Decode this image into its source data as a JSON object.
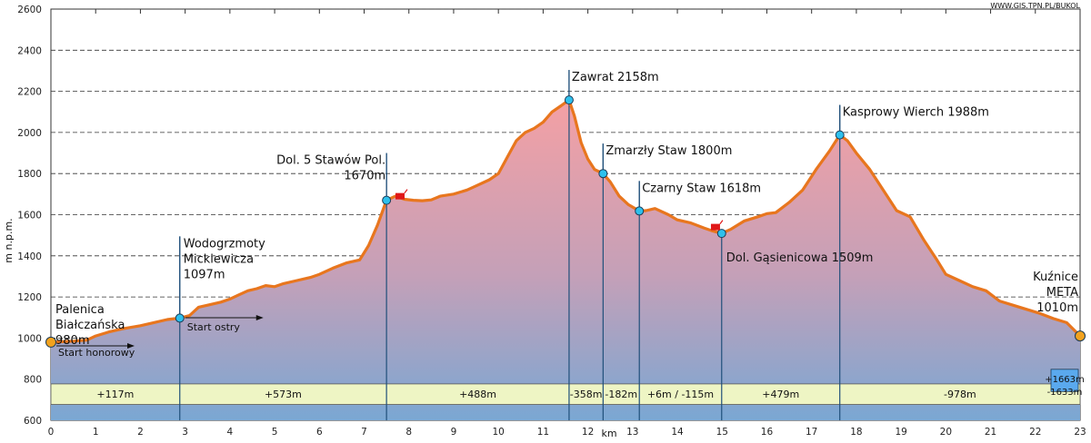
{
  "source_link": "WWW.GIS.TPN.PL/BUKOL",
  "chart_data": {
    "type": "area",
    "ylabel": "m n.p.m.",
    "xlabel": "km",
    "xlim": [
      0,
      23
    ],
    "ylim": [
      600,
      2600
    ],
    "x_ticks": [
      0,
      1,
      2,
      3,
      4,
      5,
      6,
      7,
      8,
      9,
      10,
      11,
      12,
      13,
      14,
      15,
      16,
      17,
      18,
      19,
      20,
      21,
      22,
      23
    ],
    "y_ticks": [
      600,
      800,
      1000,
      1200,
      1400,
      1600,
      1800,
      2000,
      2200,
      2400,
      2600
    ],
    "series": [
      {
        "x": [
          0,
          0.2,
          0.5,
          0.8,
          1.0,
          1.3,
          1.6,
          2.0,
          2.3,
          2.6,
          2.88,
          3.1,
          3.3,
          3.5,
          3.8,
          4.0,
          4.2,
          4.4,
          4.6,
          4.8,
          5.0,
          5.2,
          5.5,
          5.8,
          6.0,
          6.3,
          6.6,
          6.9,
          7.1,
          7.3,
          7.5,
          7.7,
          7.9,
          8.1,
          8.3,
          8.5,
          8.7,
          9.0,
          9.3,
          9.5,
          9.8,
          10.0,
          10.2,
          10.4,
          10.6,
          10.8,
          11.0,
          11.2,
          11.4,
          11.58,
          11.7,
          11.85,
          12.0,
          12.15,
          12.34,
          12.5,
          12.7,
          12.9,
          13.15,
          13.3,
          13.5,
          13.8,
          14.0,
          14.3,
          14.6,
          14.8,
          14.99,
          15.2,
          15.5,
          15.8,
          16.0,
          16.2,
          16.5,
          16.8,
          17.1,
          17.4,
          17.63,
          17.8,
          18.0,
          18.3,
          18.6,
          18.9,
          19.2,
          19.5,
          19.8,
          20.0,
          20.3,
          20.6,
          20.9,
          21.2,
          21.5,
          21.8,
          22.1,
          22.4,
          22.7,
          23.0
        ],
        "y": [
          980,
          982,
          985,
          990,
          1010,
          1030,
          1045,
          1060,
          1075,
          1090,
          1097,
          1110,
          1150,
          1160,
          1175,
          1190,
          1210,
          1230,
          1240,
          1255,
          1250,
          1265,
          1280,
          1295,
          1310,
          1340,
          1365,
          1380,
          1450,
          1550,
          1670,
          1690,
          1675,
          1670,
          1668,
          1672,
          1690,
          1700,
          1720,
          1740,
          1770,
          1800,
          1880,
          1960,
          2000,
          2020,
          2050,
          2100,
          2130,
          2158,
          2080,
          1950,
          1870,
          1820,
          1800,
          1760,
          1690,
          1650,
          1618,
          1620,
          1630,
          1600,
          1575,
          1560,
          1535,
          1520,
          1509,
          1530,
          1570,
          1590,
          1605,
          1610,
          1660,
          1720,
          1820,
          1910,
          1988,
          1960,
          1900,
          1820,
          1720,
          1620,
          1590,
          1480,
          1380,
          1310,
          1280,
          1250,
          1230,
          1180,
          1160,
          1140,
          1120,
          1095,
          1075,
          1010
        ]
      }
    ],
    "waypoints": [
      {
        "x": 0,
        "y": 980,
        "label_lines": [
          "Palenica",
          "Białczańska",
          "980m"
        ],
        "marker": "orange"
      },
      {
        "x": 2.88,
        "y": 1097,
        "label_lines": [
          "Wodogrzmoty",
          "Mickiewicza",
          "1097m"
        ],
        "marker": "cyan"
      },
      {
        "x": 7.5,
        "y": 1670,
        "label_lines": [
          "Dol. 5 Stawów Pol.",
          "1670m"
        ],
        "marker": "cyan"
      },
      {
        "x": 11.58,
        "y": 2158,
        "label_lines": [
          "Zawrat 2158m"
        ],
        "marker": "cyan"
      },
      {
        "x": 12.34,
        "y": 1800,
        "label_lines": [
          "Zmarzły Staw 1800m"
        ],
        "marker": "cyan"
      },
      {
        "x": 13.15,
        "y": 1618,
        "label_lines": [
          "Czarny Staw 1618m"
        ],
        "marker": "cyan"
      },
      {
        "x": 14.99,
        "y": 1509,
        "label_lines": [
          "Dol. Gąsienicowa 1509m"
        ],
        "marker": "cyan"
      },
      {
        "x": 17.63,
        "y": 1988,
        "label_lines": [
          "Kasprowy Wierch 1988m"
        ],
        "marker": "cyan"
      },
      {
        "x": 23,
        "y": 1010,
        "label_lines": [
          "Kuźnice",
          "META",
          "1010m"
        ],
        "marker": "orange"
      }
    ],
    "segments": [
      {
        "from": 0,
        "to": 2.88,
        "label": "+117m"
      },
      {
        "from": 2.88,
        "to": 7.5,
        "label": "+573m"
      },
      {
        "from": 7.5,
        "to": 11.58,
        "label": "+488m"
      },
      {
        "from": 11.58,
        "to": 12.34,
        "label": "-358m"
      },
      {
        "from": 12.34,
        "to": 13.15,
        "label": "-182m"
      },
      {
        "from": 13.15,
        "to": 14.99,
        "label": "+6m / -115m"
      },
      {
        "from": 14.99,
        "to": 17.63,
        "label": "+479m"
      },
      {
        "from": 17.63,
        "to": 23,
        "label": "-978m"
      }
    ],
    "start_labels": [
      {
        "text": "Start honorowy",
        "x": 0
      },
      {
        "text": "Start ostry",
        "x": 2.88
      }
    ],
    "totals": [
      "+1663m",
      "-1633m"
    ],
    "shelters": [
      {
        "x": 7.7,
        "y": 1670
      },
      {
        "x": 14.75,
        "y": 1520
      }
    ],
    "colors": {
      "line": "#e8761e",
      "fill_top": "#f4a0a4",
      "fill_bottom": "#7aa7d3",
      "band_fill": "#eef5c4",
      "marker_cyan": "#2ec0ec",
      "marker_orange": "#f2a21e",
      "pole": "#1f4f7a",
      "totals_box": "#5aa9ee"
    }
  }
}
